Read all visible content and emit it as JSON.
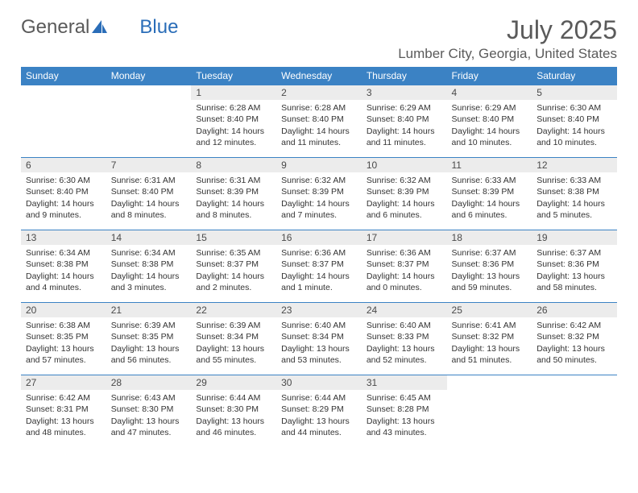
{
  "brand": {
    "part1": "General",
    "part2": "Blue"
  },
  "title": "July 2025",
  "location": "Lumber City, Georgia, United States",
  "colors": {
    "header_bg": "#3b82c4",
    "header_text": "#ffffff",
    "daynum_bg": "#ececec",
    "text": "#333333",
    "rule": "#3b82c4"
  },
  "weekdays": [
    "Sunday",
    "Monday",
    "Tuesday",
    "Wednesday",
    "Thursday",
    "Friday",
    "Saturday"
  ],
  "first_weekday_index": 2,
  "days": [
    {
      "n": 1,
      "sunrise": "6:28 AM",
      "sunset": "8:40 PM",
      "daylight": "14 hours and 12 minutes."
    },
    {
      "n": 2,
      "sunrise": "6:28 AM",
      "sunset": "8:40 PM",
      "daylight": "14 hours and 11 minutes."
    },
    {
      "n": 3,
      "sunrise": "6:29 AM",
      "sunset": "8:40 PM",
      "daylight": "14 hours and 11 minutes."
    },
    {
      "n": 4,
      "sunrise": "6:29 AM",
      "sunset": "8:40 PM",
      "daylight": "14 hours and 10 minutes."
    },
    {
      "n": 5,
      "sunrise": "6:30 AM",
      "sunset": "8:40 PM",
      "daylight": "14 hours and 10 minutes."
    },
    {
      "n": 6,
      "sunrise": "6:30 AM",
      "sunset": "8:40 PM",
      "daylight": "14 hours and 9 minutes."
    },
    {
      "n": 7,
      "sunrise": "6:31 AM",
      "sunset": "8:40 PM",
      "daylight": "14 hours and 8 minutes."
    },
    {
      "n": 8,
      "sunrise": "6:31 AM",
      "sunset": "8:39 PM",
      "daylight": "14 hours and 8 minutes."
    },
    {
      "n": 9,
      "sunrise": "6:32 AM",
      "sunset": "8:39 PM",
      "daylight": "14 hours and 7 minutes."
    },
    {
      "n": 10,
      "sunrise": "6:32 AM",
      "sunset": "8:39 PM",
      "daylight": "14 hours and 6 minutes."
    },
    {
      "n": 11,
      "sunrise": "6:33 AM",
      "sunset": "8:39 PM",
      "daylight": "14 hours and 6 minutes."
    },
    {
      "n": 12,
      "sunrise": "6:33 AM",
      "sunset": "8:38 PM",
      "daylight": "14 hours and 5 minutes."
    },
    {
      "n": 13,
      "sunrise": "6:34 AM",
      "sunset": "8:38 PM",
      "daylight": "14 hours and 4 minutes."
    },
    {
      "n": 14,
      "sunrise": "6:34 AM",
      "sunset": "8:38 PM",
      "daylight": "14 hours and 3 minutes."
    },
    {
      "n": 15,
      "sunrise": "6:35 AM",
      "sunset": "8:37 PM",
      "daylight": "14 hours and 2 minutes."
    },
    {
      "n": 16,
      "sunrise": "6:36 AM",
      "sunset": "8:37 PM",
      "daylight": "14 hours and 1 minute."
    },
    {
      "n": 17,
      "sunrise": "6:36 AM",
      "sunset": "8:37 PM",
      "daylight": "14 hours and 0 minutes."
    },
    {
      "n": 18,
      "sunrise": "6:37 AM",
      "sunset": "8:36 PM",
      "daylight": "13 hours and 59 minutes."
    },
    {
      "n": 19,
      "sunrise": "6:37 AM",
      "sunset": "8:36 PM",
      "daylight": "13 hours and 58 minutes."
    },
    {
      "n": 20,
      "sunrise": "6:38 AM",
      "sunset": "8:35 PM",
      "daylight": "13 hours and 57 minutes."
    },
    {
      "n": 21,
      "sunrise": "6:39 AM",
      "sunset": "8:35 PM",
      "daylight": "13 hours and 56 minutes."
    },
    {
      "n": 22,
      "sunrise": "6:39 AM",
      "sunset": "8:34 PM",
      "daylight": "13 hours and 55 minutes."
    },
    {
      "n": 23,
      "sunrise": "6:40 AM",
      "sunset": "8:34 PM",
      "daylight": "13 hours and 53 minutes."
    },
    {
      "n": 24,
      "sunrise": "6:40 AM",
      "sunset": "8:33 PM",
      "daylight": "13 hours and 52 minutes."
    },
    {
      "n": 25,
      "sunrise": "6:41 AM",
      "sunset": "8:32 PM",
      "daylight": "13 hours and 51 minutes."
    },
    {
      "n": 26,
      "sunrise": "6:42 AM",
      "sunset": "8:32 PM",
      "daylight": "13 hours and 50 minutes."
    },
    {
      "n": 27,
      "sunrise": "6:42 AM",
      "sunset": "8:31 PM",
      "daylight": "13 hours and 48 minutes."
    },
    {
      "n": 28,
      "sunrise": "6:43 AM",
      "sunset": "8:30 PM",
      "daylight": "13 hours and 47 minutes."
    },
    {
      "n": 29,
      "sunrise": "6:44 AM",
      "sunset": "8:30 PM",
      "daylight": "13 hours and 46 minutes."
    },
    {
      "n": 30,
      "sunrise": "6:44 AM",
      "sunset": "8:29 PM",
      "daylight": "13 hours and 44 minutes."
    },
    {
      "n": 31,
      "sunrise": "6:45 AM",
      "sunset": "8:28 PM",
      "daylight": "13 hours and 43 minutes."
    }
  ],
  "labels": {
    "sunrise": "Sunrise:",
    "sunset": "Sunset:",
    "daylight": "Daylight:"
  }
}
